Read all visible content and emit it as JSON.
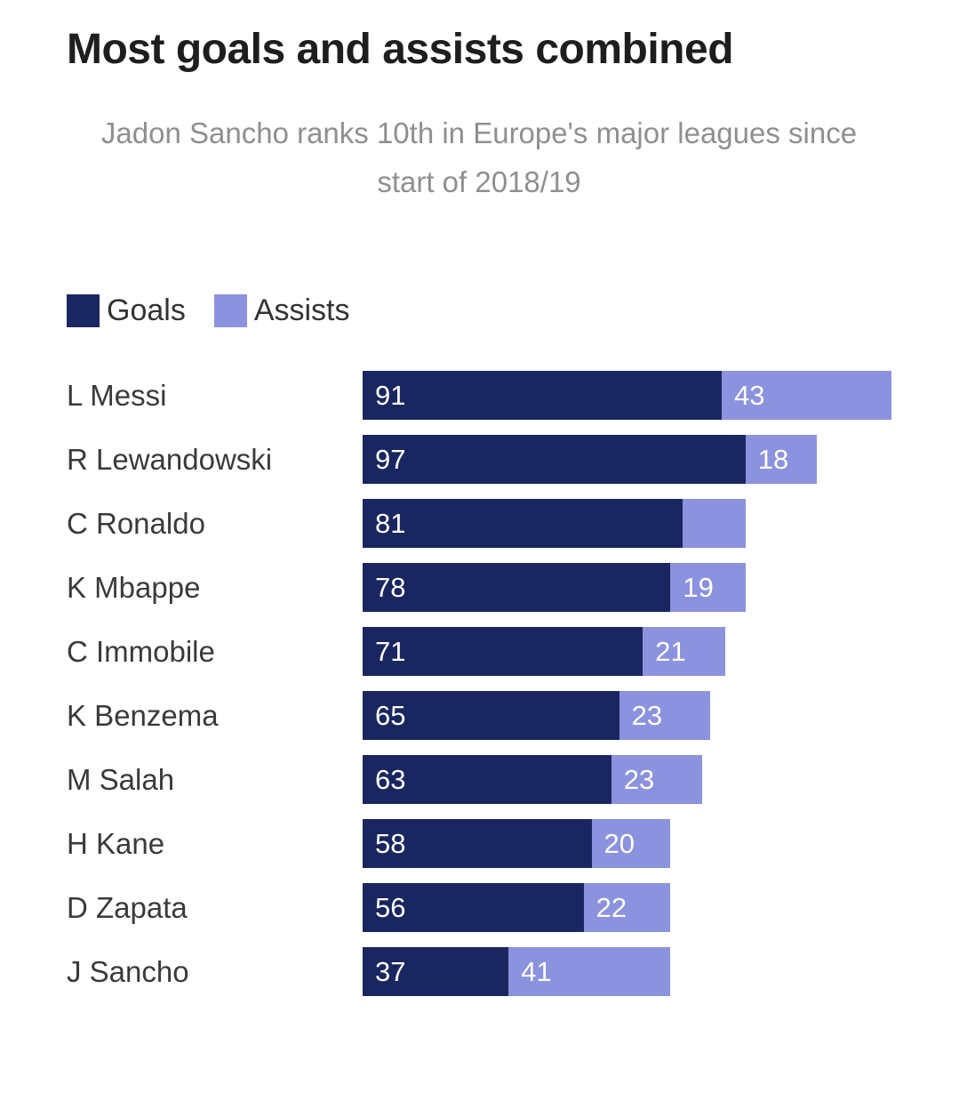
{
  "chart_data": {
    "type": "bar",
    "orientation": "horizontal",
    "stacked": true,
    "title": "Most goals and assists combined",
    "subtitle": "Jadon Sancho ranks 10th in Europe's major leagues since start of 2018/19",
    "legend": {
      "goals": "Goals",
      "assists": "Assists"
    },
    "colors": {
      "goals": "#1a265f",
      "assists": "#8b92de"
    },
    "x_max": 134,
    "categories": [
      "L Messi",
      "R Lewandowski",
      "C Ronaldo",
      "K Mbappe",
      "C Immobile",
      "K Benzema",
      "M Salah",
      "H Kane",
      "D Zapata",
      "J Sancho"
    ],
    "series": [
      {
        "name": "Goals",
        "values": [
          91,
          97,
          81,
          78,
          71,
          65,
          63,
          58,
          56,
          37
        ]
      },
      {
        "name": "Assists",
        "values": [
          43,
          18,
          16,
          19,
          21,
          23,
          23,
          20,
          22,
          41
        ]
      }
    ],
    "goal_labels": [
      "91",
      "97",
      "81",
      "78",
      "71",
      "65",
      "63",
      "58",
      "56",
      "37"
    ],
    "assist_labels": [
      "43",
      "18",
      "",
      "19",
      "21",
      "23",
      "23",
      "20",
      "22",
      "41"
    ],
    "grid": false,
    "legend_position": "top-left"
  }
}
